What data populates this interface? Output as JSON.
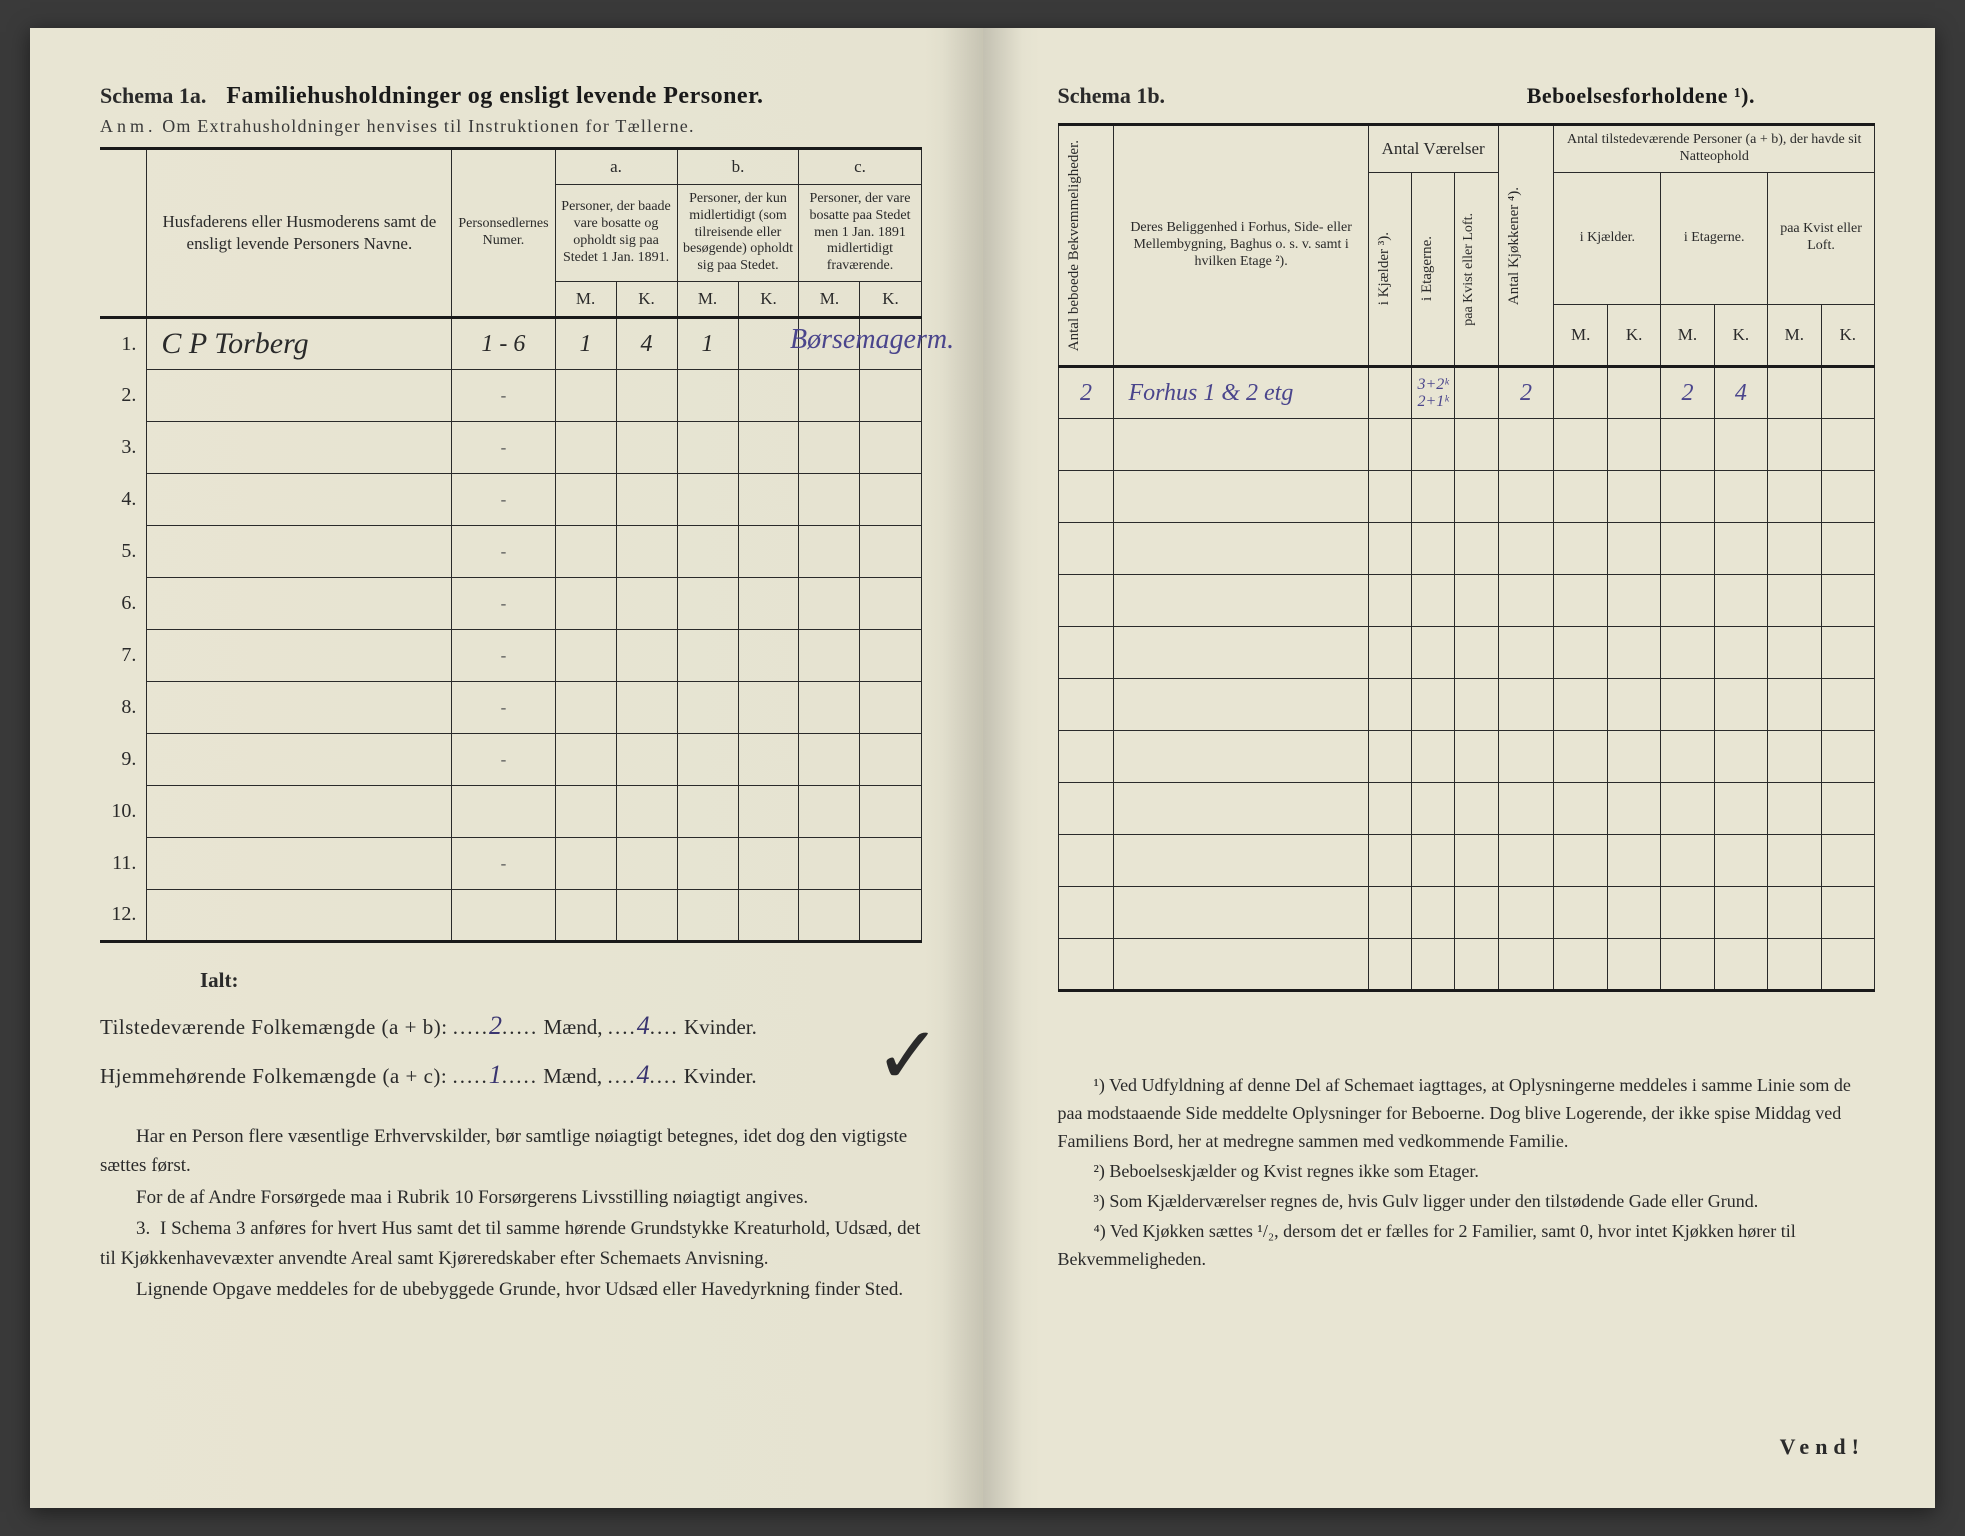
{
  "left": {
    "schema_label": "Schema 1a.",
    "schema_title": "Familiehusholdninger og ensligt levende Personer.",
    "anm_prefix": "Anm.",
    "anm_text": "Om Extrahusholdninger henvises til Instruktionen for Tællerne.",
    "col_name": "Husfaderens eller Husmoderens samt de ensligt levende Personers Navne.",
    "col_numer": "Personsedlernes Numer.",
    "group_a": "a.",
    "group_a_text": "Personer, der baade vare bosatte og opholdt sig paa Stedet 1 Jan. 1891.",
    "group_b": "b.",
    "group_b_text": "Personer, der kun midlertidigt (som tilreisende eller besøgende) opholdt sig paa Stedet.",
    "group_c": "c.",
    "group_c_text": "Personer, der vare bosatte paa Stedet men 1 Jan. 1891 midlertidigt fraværende.",
    "mk_m": "M.",
    "mk_k": "K.",
    "rows": [
      {
        "n": "1.",
        "name": "C P Torberg",
        "numer": "1 - 6",
        "am": "1",
        "ak": "4",
        "bm": "1",
        "bk": "",
        "cm": "",
        "ck": "",
        "right_note": "Børsemagerm."
      },
      {
        "n": "2.",
        "name": "",
        "numer": "-",
        "am": "",
        "ak": "",
        "bm": "",
        "bk": "",
        "cm": "",
        "ck": ""
      },
      {
        "n": "3.",
        "name": "",
        "numer": "-",
        "am": "",
        "ak": "",
        "bm": "",
        "bk": "",
        "cm": "",
        "ck": ""
      },
      {
        "n": "4.",
        "name": "",
        "numer": "-",
        "am": "",
        "ak": "",
        "bm": "",
        "bk": "",
        "cm": "",
        "ck": ""
      },
      {
        "n": "5.",
        "name": "",
        "numer": "-",
        "am": "",
        "ak": "",
        "bm": "",
        "bk": "",
        "cm": "",
        "ck": ""
      },
      {
        "n": "6.",
        "name": "",
        "numer": "-",
        "am": "",
        "ak": "",
        "bm": "",
        "bk": "",
        "cm": "",
        "ck": ""
      },
      {
        "n": "7.",
        "name": "",
        "numer": "-",
        "am": "",
        "ak": "",
        "bm": "",
        "bk": "",
        "cm": "",
        "ck": ""
      },
      {
        "n": "8.",
        "name": "",
        "numer": "-",
        "am": "",
        "ak": "",
        "bm": "",
        "bk": "",
        "cm": "",
        "ck": ""
      },
      {
        "n": "9.",
        "name": "",
        "numer": "-",
        "am": "",
        "ak": "",
        "bm": "",
        "bk": "",
        "cm": "",
        "ck": ""
      },
      {
        "n": "10.",
        "name": "",
        "numer": "",
        "am": "",
        "ak": "",
        "bm": "",
        "bk": "",
        "cm": "",
        "ck": ""
      },
      {
        "n": "11.",
        "name": "",
        "numer": "-",
        "am": "",
        "ak": "",
        "bm": "",
        "bk": "",
        "cm": "",
        "ck": ""
      },
      {
        "n": "12.",
        "name": "",
        "numer": "",
        "am": "",
        "ak": "",
        "bm": "",
        "bk": "",
        "cm": "",
        "ck": ""
      }
    ],
    "ialt": "Ialt:",
    "sum1_label": "Tilstedeværende Folkemængde (a + b):",
    "sum1_m": "2",
    "sum1_mw": "Mænd,",
    "sum1_k": "4",
    "sum1_kw": "Kvinder.",
    "sum2_label": "Hjemmehørende Folkemængde (a + c):",
    "sum2_m": "1",
    "sum2_k": "4",
    "body1": "Har en Person flere væsentlige Erhvervskilder, bør samtlige nøiagtigt betegnes, idet dog den vigtigste sættes først.",
    "body2": "For de af Andre Forsørgede maa i Rubrik 10 Forsørgerens Livsstilling nøiagtigt angives.",
    "body3_num": "3.",
    "body3": "I Schema 3 anføres for hvert Hus samt det til samme hørende Grundstykke Kreaturhold, Udsæd, det til Kjøkkenhavevæxter anvendte Areal samt Kjøreredskaber efter Schemaets Anvisning.",
    "body4": "Lignende Opgave meddeles for de ubebyggede Grunde, hvor Udsæd eller Havedyrkning finder Sted."
  },
  "right": {
    "schema_label": "Schema 1b.",
    "schema_title": "Beboelsesforholdene ¹).",
    "col_bekv": "Antal beboede Bekvemmeligheder.",
    "col_belig": "Deres Beliggenhed i Forhus, Side- eller Mellembygning, Baghus o. s. v. samt i hvilken Etage ²).",
    "group_vaer": "Antal Værelser",
    "col_kj": "i Kjælder ³).",
    "col_et": "i Etagerne.",
    "col_kv": "paa Kvist eller Loft.",
    "col_kjok": "Antal Kjøkkener ⁴).",
    "group_pers": "Antal tilstedeværende Personer (a + b), der havde sit Natteophold",
    "col_p_kj": "i Kjælder.",
    "col_p_et": "i Etagerne.",
    "col_p_kv": "paa Kvist eller Loft.",
    "mk_m": "M.",
    "mk_k": "K.",
    "row1": {
      "bekv": "2",
      "belig": "Forhus 1 & 2 etg",
      "vkj": "",
      "vet": "3+2ᵏ 2+1ᵏ",
      "vkv": "",
      "kjok": "2",
      "pkjm": "",
      "pkjk": "",
      "petm": "2",
      "petk": "4",
      "pkvm": "",
      "pkvk": ""
    },
    "fn1": "¹) Ved Udfyldning af denne Del af Schemaet iagttages, at Oplysningerne meddeles i samme Linie som de paa modstaaende Side meddelte Oplysninger for Beboerne. Dog blive Logerende, der ikke spise Middag ved Familiens Bord, her at medregne sammen med vedkommende Familie.",
    "fn2": "²) Beboelseskjælder og Kvist regnes ikke som Etager.",
    "fn3": "³) Som Kjælderværelser regnes de, hvis Gulv ligger under den tilstødende Gade eller Grund.",
    "fn4": "⁴) Ved Kjøkken sættes ¹/₂, dersom det er fælles for 2 Familier, samt 0, hvor intet Kjøkken hører til Bekvemmeligheden.",
    "vend": "Vend!"
  },
  "colors": {
    "paper": "#e8e5d3",
    "ink": "#2a2a2a",
    "handwriting": "#4a458c"
  }
}
